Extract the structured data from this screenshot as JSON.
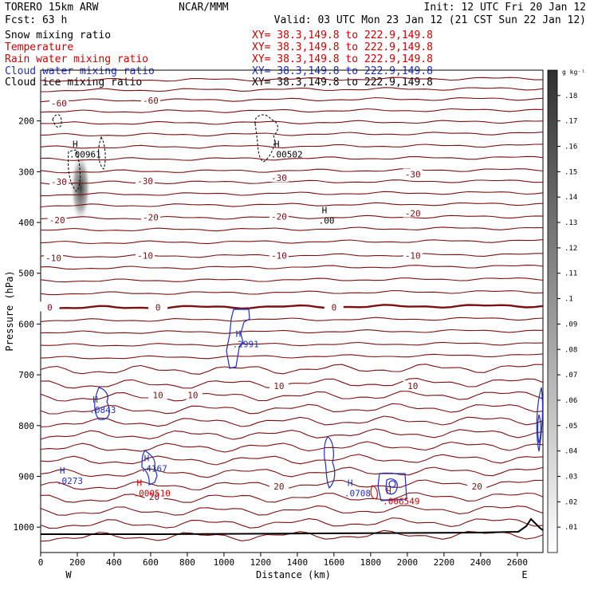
{
  "header": {
    "model": "TORERO  15km ARW",
    "center": "NCAR/MMM",
    "init": "Init: 12 UTC Fri 20 Jan 12",
    "fcst": "Fcst:   63 h",
    "valid": "Valid: 03 UTC Mon 23 Jan 12 (21 CST Sun 22 Jan 12)"
  },
  "fields": [
    {
      "name": "Snow mixing ratio",
      "xy": "XY=  38.3,149.8 to 222.9,149.8",
      "color": "#000000"
    },
    {
      "name": "Temperature",
      "xy": "XY=  38.3,149.8 to 222.9,149.8",
      "color": "#cc0000"
    },
    {
      "name": "Rain water mixing ratio",
      "xy": "XY=  38.3,149.8 to 222.9,149.8",
      "color": "#cc0000"
    },
    {
      "name": "Cloud water mixing ratio",
      "xy": "XY=  38.3,149.8 to 222.9,149.8",
      "color": "#1f2fc8"
    },
    {
      "name": "Cloud ice mixing ratio",
      "xy": "XY=  38.3,149.8 to 222.9,149.8",
      "color": "#000000"
    }
  ],
  "colorbar": {
    "unit": "g kg⁻¹",
    "ticks": [
      ".01",
      ".02",
      ".03",
      ".04",
      ".05",
      ".06",
      ".07",
      ".08",
      ".09",
      ".1",
      ".11",
      ".12",
      ".13",
      ".14",
      ".15",
      ".16",
      ".17",
      ".18"
    ]
  },
  "chart_data": {
    "type": "contour cross-section",
    "xlabel": "Distance (km)",
    "ylabel": "Pressure (hPa)",
    "xlim": [
      0,
      2740
    ],
    "ylim": [
      1050,
      100
    ],
    "x_ticks": [
      "0",
      "200",
      "400",
      "600",
      "800",
      "1000",
      "1200",
      "1400",
      "1600",
      "1800",
      "2000",
      "2200",
      "2400",
      "2600"
    ],
    "y_ticks": [
      "200",
      "300",
      "400",
      "500",
      "600",
      "700",
      "800",
      "900",
      "1000"
    ],
    "endpoints": {
      "left": "W",
      "right": "E"
    },
    "temperature_contours": [
      {
        "label": "-60",
        "value": -60,
        "x": 600,
        "p": 160,
        "level": 160
      },
      {
        "label": "-60",
        "value": -60,
        "x": 100,
        "p": 165,
        "level": 165
      },
      {
        "label": "-30",
        "value": -30,
        "x": 100,
        "p": 320,
        "level": 322
      },
      {
        "label": "-30",
        "value": -30,
        "x": 570,
        "p": 318,
        "level": 318
      },
      {
        "label": "-30",
        "value": -30,
        "x": 1300,
        "p": 312,
        "level": 312
      },
      {
        "label": "-30",
        "value": -30,
        "x": 2030,
        "p": 305,
        "level": 305
      },
      {
        "label": "-20",
        "value": -20,
        "x": 90,
        "p": 395,
        "level": 397
      },
      {
        "label": "-20",
        "value": -20,
        "x": 600,
        "p": 390,
        "level": 392
      },
      {
        "label": "-20",
        "value": -20,
        "x": 1300,
        "p": 388,
        "level": 390
      },
      {
        "label": "-20",
        "value": -20,
        "x": 2030,
        "p": 382,
        "level": 384
      },
      {
        "label": "-10",
        "value": -10,
        "x": 70,
        "p": 470,
        "level": 473
      },
      {
        "label": "-10",
        "value": -10,
        "x": 570,
        "p": 465,
        "level": 467
      },
      {
        "label": "-10",
        "value": -10,
        "x": 1300,
        "p": 465,
        "level": 467
      },
      {
        "label": "-10",
        "value": -10,
        "x": 2030,
        "p": 465,
        "level": 467
      },
      {
        "label": "0",
        "value": 0,
        "x": 50,
        "p": 567,
        "level": 568
      },
      {
        "label": "0",
        "value": 0,
        "x": 640,
        "p": 567,
        "level": 568
      },
      {
        "label": "0",
        "value": 0,
        "x": 1600,
        "p": 567,
        "level": 568
      },
      {
        "label": "10",
        "value": 10,
        "x": 640,
        "p": 740,
        "level": 740
      },
      {
        "label": "10",
        "value": 10,
        "x": 830,
        "p": 740,
        "level": 742
      },
      {
        "label": "10",
        "value": 10,
        "x": 1300,
        "p": 722,
        "level": 724
      },
      {
        "label": "10",
        "value": 10,
        "x": 2030,
        "p": 722,
        "level": 724
      },
      {
        "label": "20",
        "value": 20,
        "x": 620,
        "p": 940,
        "level": 935
      },
      {
        "label": "20",
        "value": 20,
        "x": 1300,
        "p": 920,
        "level": 920
      },
      {
        "label": "20",
        "value": 20,
        "x": 2380,
        "p": 920,
        "level": 920
      }
    ],
    "extrema": [
      {
        "mark": "H",
        "value": ".00961",
        "x": 200,
        "p": 255,
        "color": "#000000"
      },
      {
        "mark": "H",
        "value": ".00502",
        "x": 1300,
        "p": 255,
        "color": "#000000"
      },
      {
        "mark": "H",
        "value": ".00",
        "x": 1560,
        "p": 385,
        "color": "#000000"
      },
      {
        "mark": "H",
        "value": ".2991",
        "x": 1090,
        "p": 628,
        "color": "#1f2fc8"
      },
      {
        "mark": "H",
        "value": ".0843",
        "x": 310,
        "p": 758,
        "color": "#1f2fc8"
      },
      {
        "mark": "H",
        "value": ".4167",
        "x": 590,
        "p": 873,
        "color": "#1f2fc8"
      },
      {
        "mark": "H",
        "value": ".0273",
        "x": 130,
        "p": 898,
        "color": "#1f2fc8"
      },
      {
        "mark": "H",
        "value": ".000510",
        "x": 550,
        "p": 922,
        "color": "#cc0000"
      },
      {
        "mark": "H",
        "value": ".0708",
        "x": 1700,
        "p": 922,
        "color": "#1f2fc8"
      },
      {
        "mark": "H",
        "value": ".006549",
        "x": 1910,
        "p": 938,
        "color": "#cc0000"
      }
    ],
    "snow_max": {
      "x": 210,
      "p_top": 270,
      "p_bottom": 410,
      "value": 0.18
    }
  }
}
